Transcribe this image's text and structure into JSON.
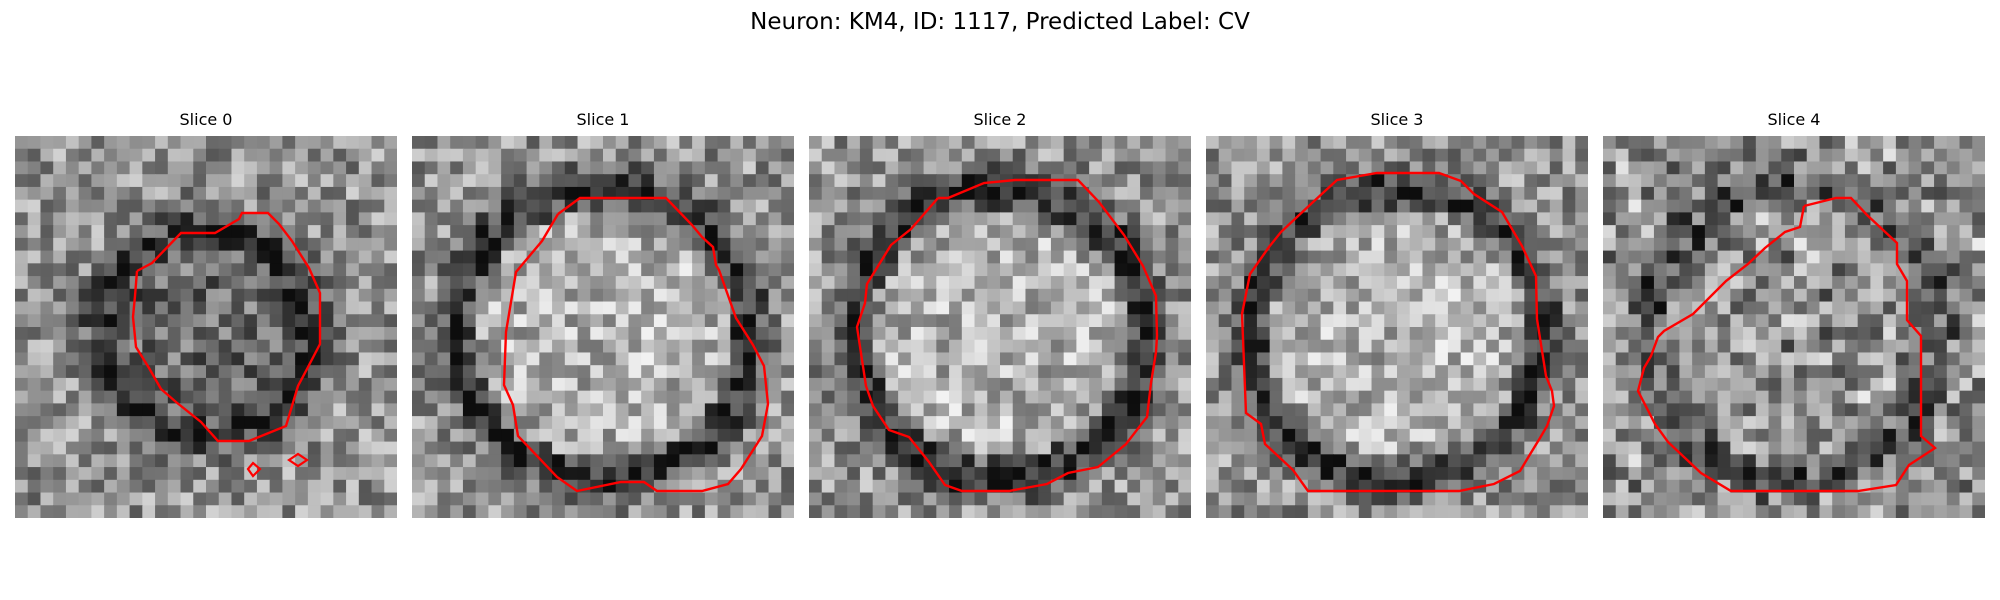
{
  "figure": {
    "title": "Neuron: KM4, ID: 1117, Predicted Label: CV"
  },
  "colors": {
    "contour": "#ff0000",
    "background": "#ffffff"
  },
  "slices": [
    {
      "label": "Slice 0",
      "seed": 11,
      "ring_strength": 0.55,
      "texture": "dark-diffuse"
    },
    {
      "label": "Slice 1",
      "seed": 23,
      "ring_strength": 0.75,
      "texture": "bright-center"
    },
    {
      "label": "Slice 2",
      "seed": 37,
      "ring_strength": 0.8,
      "texture": "bright-center"
    },
    {
      "label": "Slice 3",
      "seed": 41,
      "ring_strength": 0.7,
      "texture": "bright-center"
    },
    {
      "label": "Slice 4",
      "seed": 59,
      "ring_strength": 0.5,
      "texture": "noisy"
    }
  ]
}
